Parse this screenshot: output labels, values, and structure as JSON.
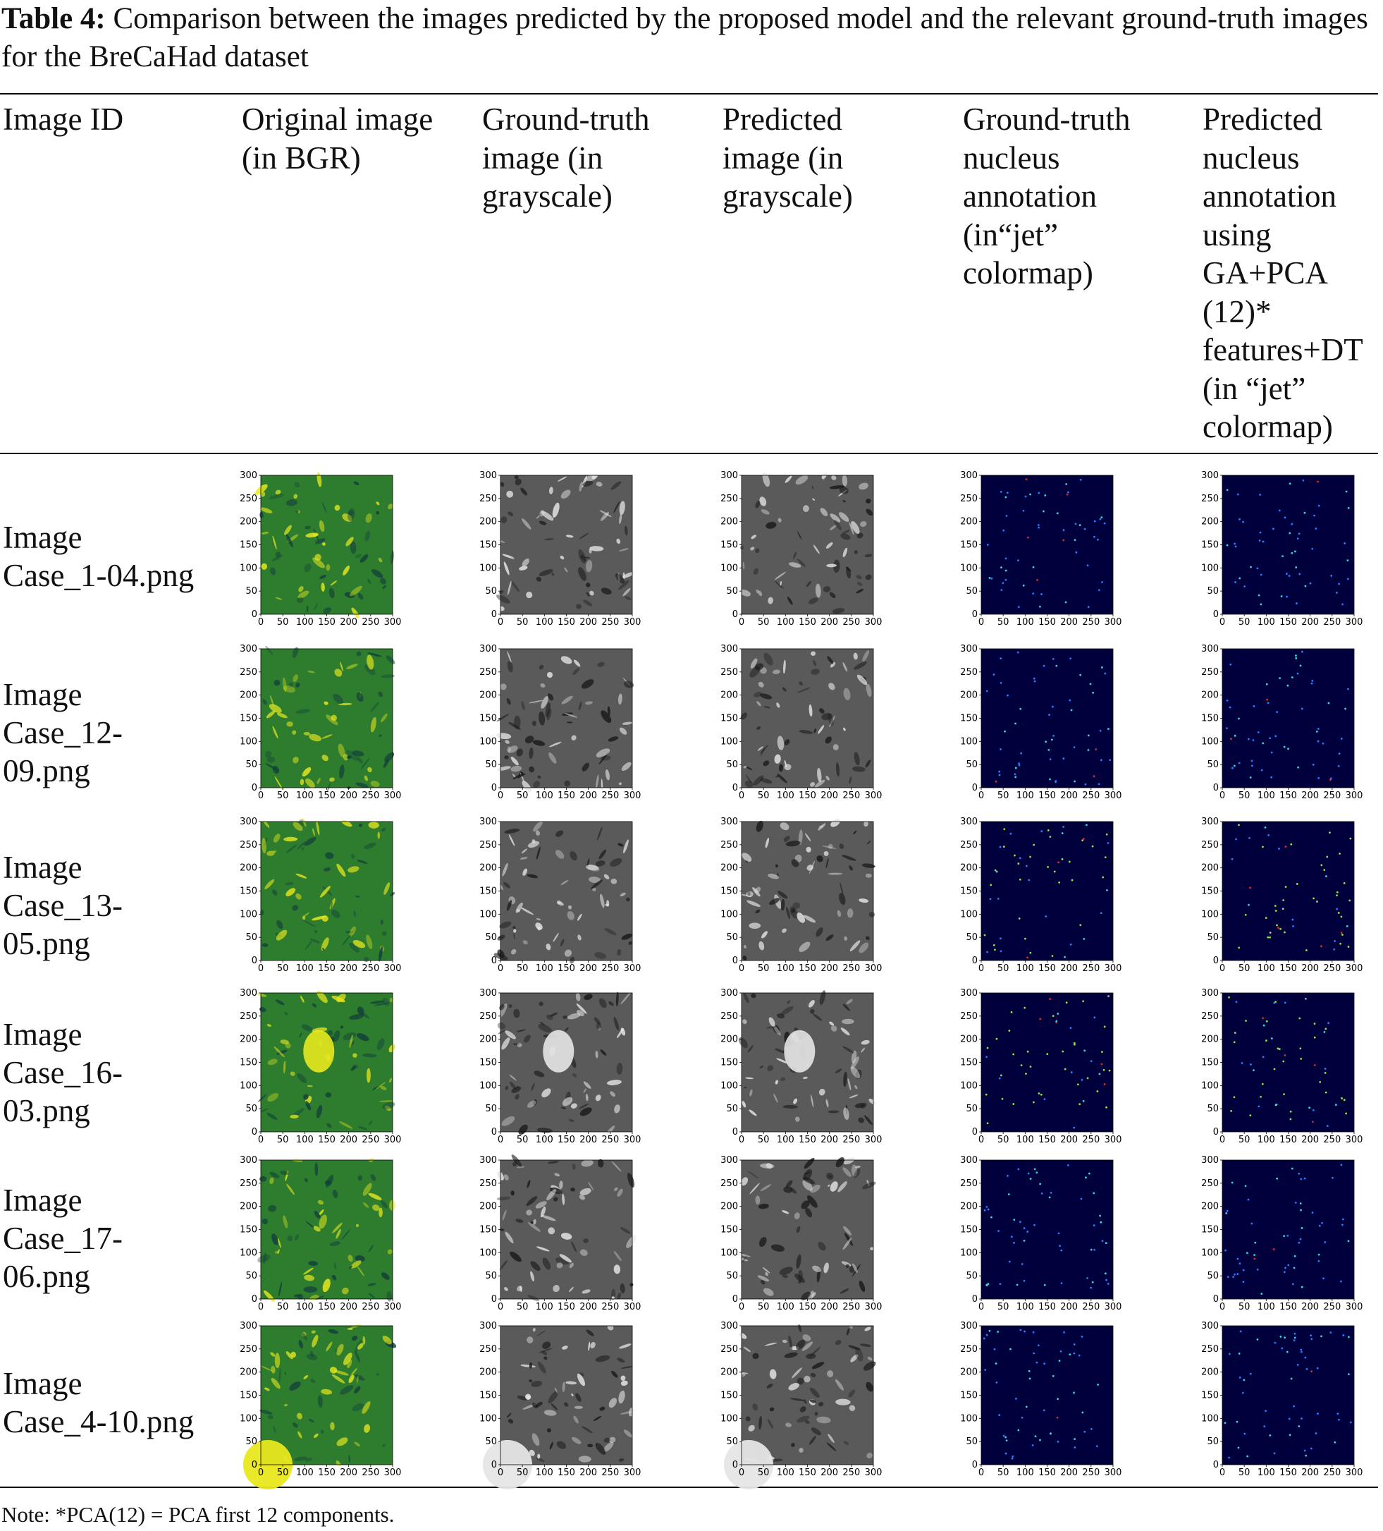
{
  "caption": {
    "label": "Table 4:",
    "text": " Comparison between the images predicted by the proposed model and the relevant ground-truth images for the BreCaHad dataset"
  },
  "columns": [
    "Image ID",
    "Original image (in BGR)",
    "Ground-truth image (in grayscale)",
    "Predicted image (in grayscale)",
    "Ground-truth nucleus annotation (in“jet” colormap)",
    "Predicted nucleus annotation using GA+PCA (12)* features+DT (in “jet” colormap)"
  ],
  "axis": {
    "x_ticks": [
      "0",
      "50",
      "100",
      "150",
      "200",
      "250",
      "300"
    ],
    "y_ticks": [
      "0",
      "50",
      "100",
      "150",
      "200",
      "250",
      "300"
    ],
    "range": [
      0,
      300
    ]
  },
  "rows": [
    {
      "id": "Image Case_1-04.png",
      "lines": [
        "Image",
        "Case_1-04.png"
      ]
    },
    {
      "id": "Image Case_12-09.png",
      "lines": [
        "Image",
        "Case_12-",
        "09.png"
      ]
    },
    {
      "id": "Image Case_13-05.png",
      "lines": [
        "Image",
        "Case_13-",
        "05.png"
      ]
    },
    {
      "id": "Image Case_16-03.png",
      "lines": [
        "Image",
        "Case_16-",
        "03.png"
      ]
    },
    {
      "id": "Image Case_17-06.png",
      "lines": [
        "Image",
        "Case_17-",
        "06.png"
      ]
    },
    {
      "id": "Image Case_4-10.png",
      "lines": [
        "Image",
        "Case_4-10.png"
      ]
    }
  ],
  "note": "Note: *PCA(12) = PCA first 12 components.",
  "colors": {
    "bgr_base": "#2e7d2e",
    "bgr_highlight": "#e8e81e",
    "gray_base": "#5a5a5a",
    "jet_background": "#00003d",
    "jet_blue": "#2a7bff",
    "jet_cyan": "#33d6e0",
    "jet_green": "#8ee34a",
    "jet_red": "#e02828"
  }
}
